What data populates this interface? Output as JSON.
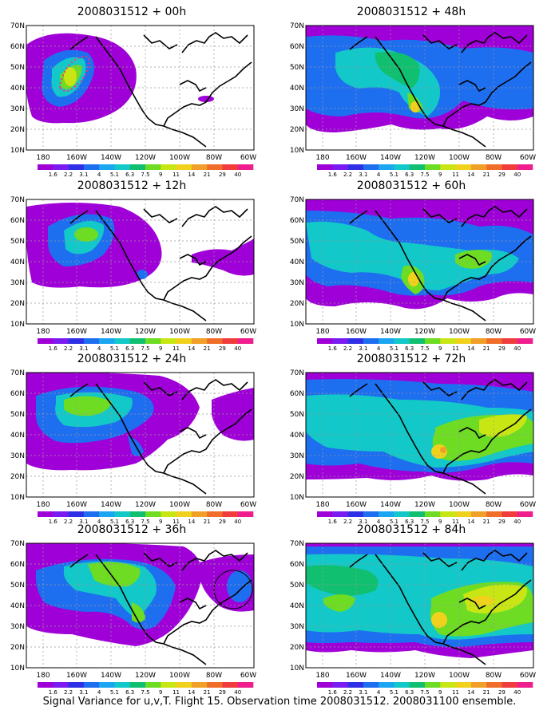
{
  "map": {
    "lat_labels": [
      "70N",
      "60N",
      "50N",
      "40N",
      "30N",
      "20N",
      "10N"
    ],
    "lon_labels": [
      "180",
      "160W",
      "140W",
      "120W",
      "100W",
      "80W",
      "60W"
    ],
    "colorbar": {
      "labels": [
        "1.6",
        "2.2",
        "3.1",
        "4",
        "5.1",
        "6.3",
        "7.5",
        "9",
        "11",
        "14",
        "21",
        "29",
        "40"
      ],
      "colors": [
        "#a000d8",
        "#7a1cf0",
        "#2f2fe6",
        "#1e6ef0",
        "#1aa6f0",
        "#12c8c8",
        "#10c070",
        "#6edc22",
        "#c8e614",
        "#f0d21c",
        "#f0a028",
        "#f06e2a",
        "#f03c3c",
        "#f01e8c"
      ]
    }
  },
  "panels": [
    {
      "title": "2008031512 + 00h"
    },
    {
      "title": "2008031512 + 48h"
    },
    {
      "title": "2008031512 + 12h"
    },
    {
      "title": "2008031512 + 60h"
    },
    {
      "title": "2008031512 + 24h"
    },
    {
      "title": "2008031512 + 72h"
    },
    {
      "title": "2008031512 + 36h"
    },
    {
      "title": "2008031512 + 84h"
    }
  ],
  "caption": "Signal Variance for u,v,T. Flight 15. Observation time 2008031512. 2008031100 ensemble."
}
